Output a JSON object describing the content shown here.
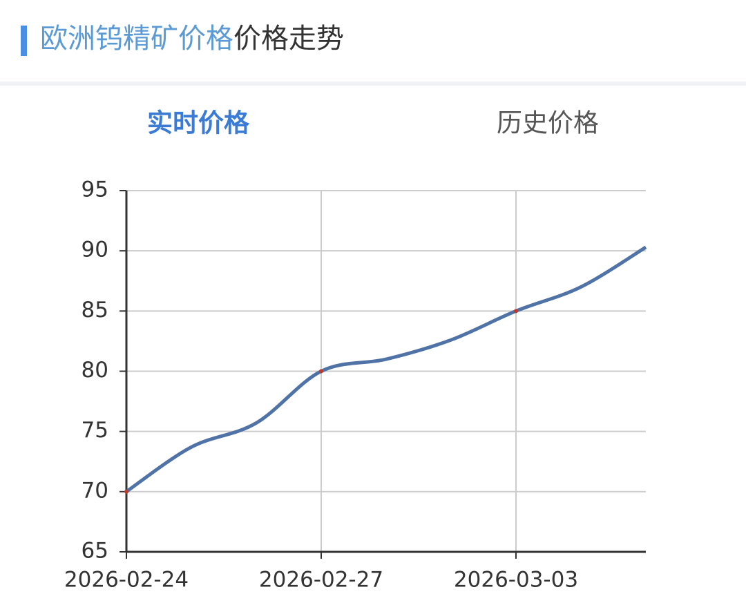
{
  "header": {
    "title_highlight": "欧洲钨精矿价格",
    "title_rest": "价格走势"
  },
  "tabs": [
    "实时价格",
    "历史价格"
  ],
  "chart_data": {
    "type": "line",
    "categories": [
      "2026-02-24",
      null,
      null,
      "2026-02-27",
      null,
      null,
      "2026-03-03",
      null,
      null
    ],
    "series": [
      {
        "name": "price",
        "color": "#4f73a6",
        "values": [
          70,
          73.7,
          75.7,
          80,
          81.0,
          82.6,
          85,
          87.0,
          90.3
        ]
      }
    ],
    "ylim": [
      65,
      95
    ],
    "yticks": [
      65,
      70,
      75,
      80,
      85,
      90,
      95
    ],
    "grid": true,
    "marker_color": "#c0392b"
  }
}
